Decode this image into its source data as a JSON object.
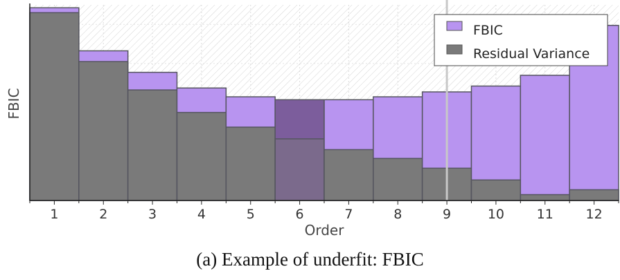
{
  "chart_data": {
    "type": "bar",
    "xlabel": "Order",
    "ylabel": "FBIC",
    "categories": [
      "1",
      "2",
      "3",
      "4",
      "5",
      "6",
      "7",
      "8",
      "9",
      "10",
      "11",
      "12"
    ],
    "ylim": [
      0,
      100
    ],
    "series": [
      {
        "name": "FBIC",
        "values": [
          98.5,
          76.5,
          65.5,
          57.5,
          53,
          51.5,
          51.5,
          53,
          55.5,
          58.5,
          64,
          89.5
        ]
      },
      {
        "name": "Residual Variance",
        "values": [
          96,
          71,
          56.5,
          45,
          37.5,
          31.5,
          26,
          21.5,
          16.5,
          10.5,
          3,
          5.5
        ]
      }
    ],
    "highlighted_category": "6",
    "vertical_marker_x": "9",
    "grid": true,
    "legend_position": "top-right",
    "colors": {
      "fbic": "#b894f0",
      "residual": "#7a7a7a",
      "highlight": "#7c5d9c",
      "edge": "#55555f",
      "marker": "#c8c8c8"
    }
  },
  "caption": "(a) Example of underfit: FBIC"
}
